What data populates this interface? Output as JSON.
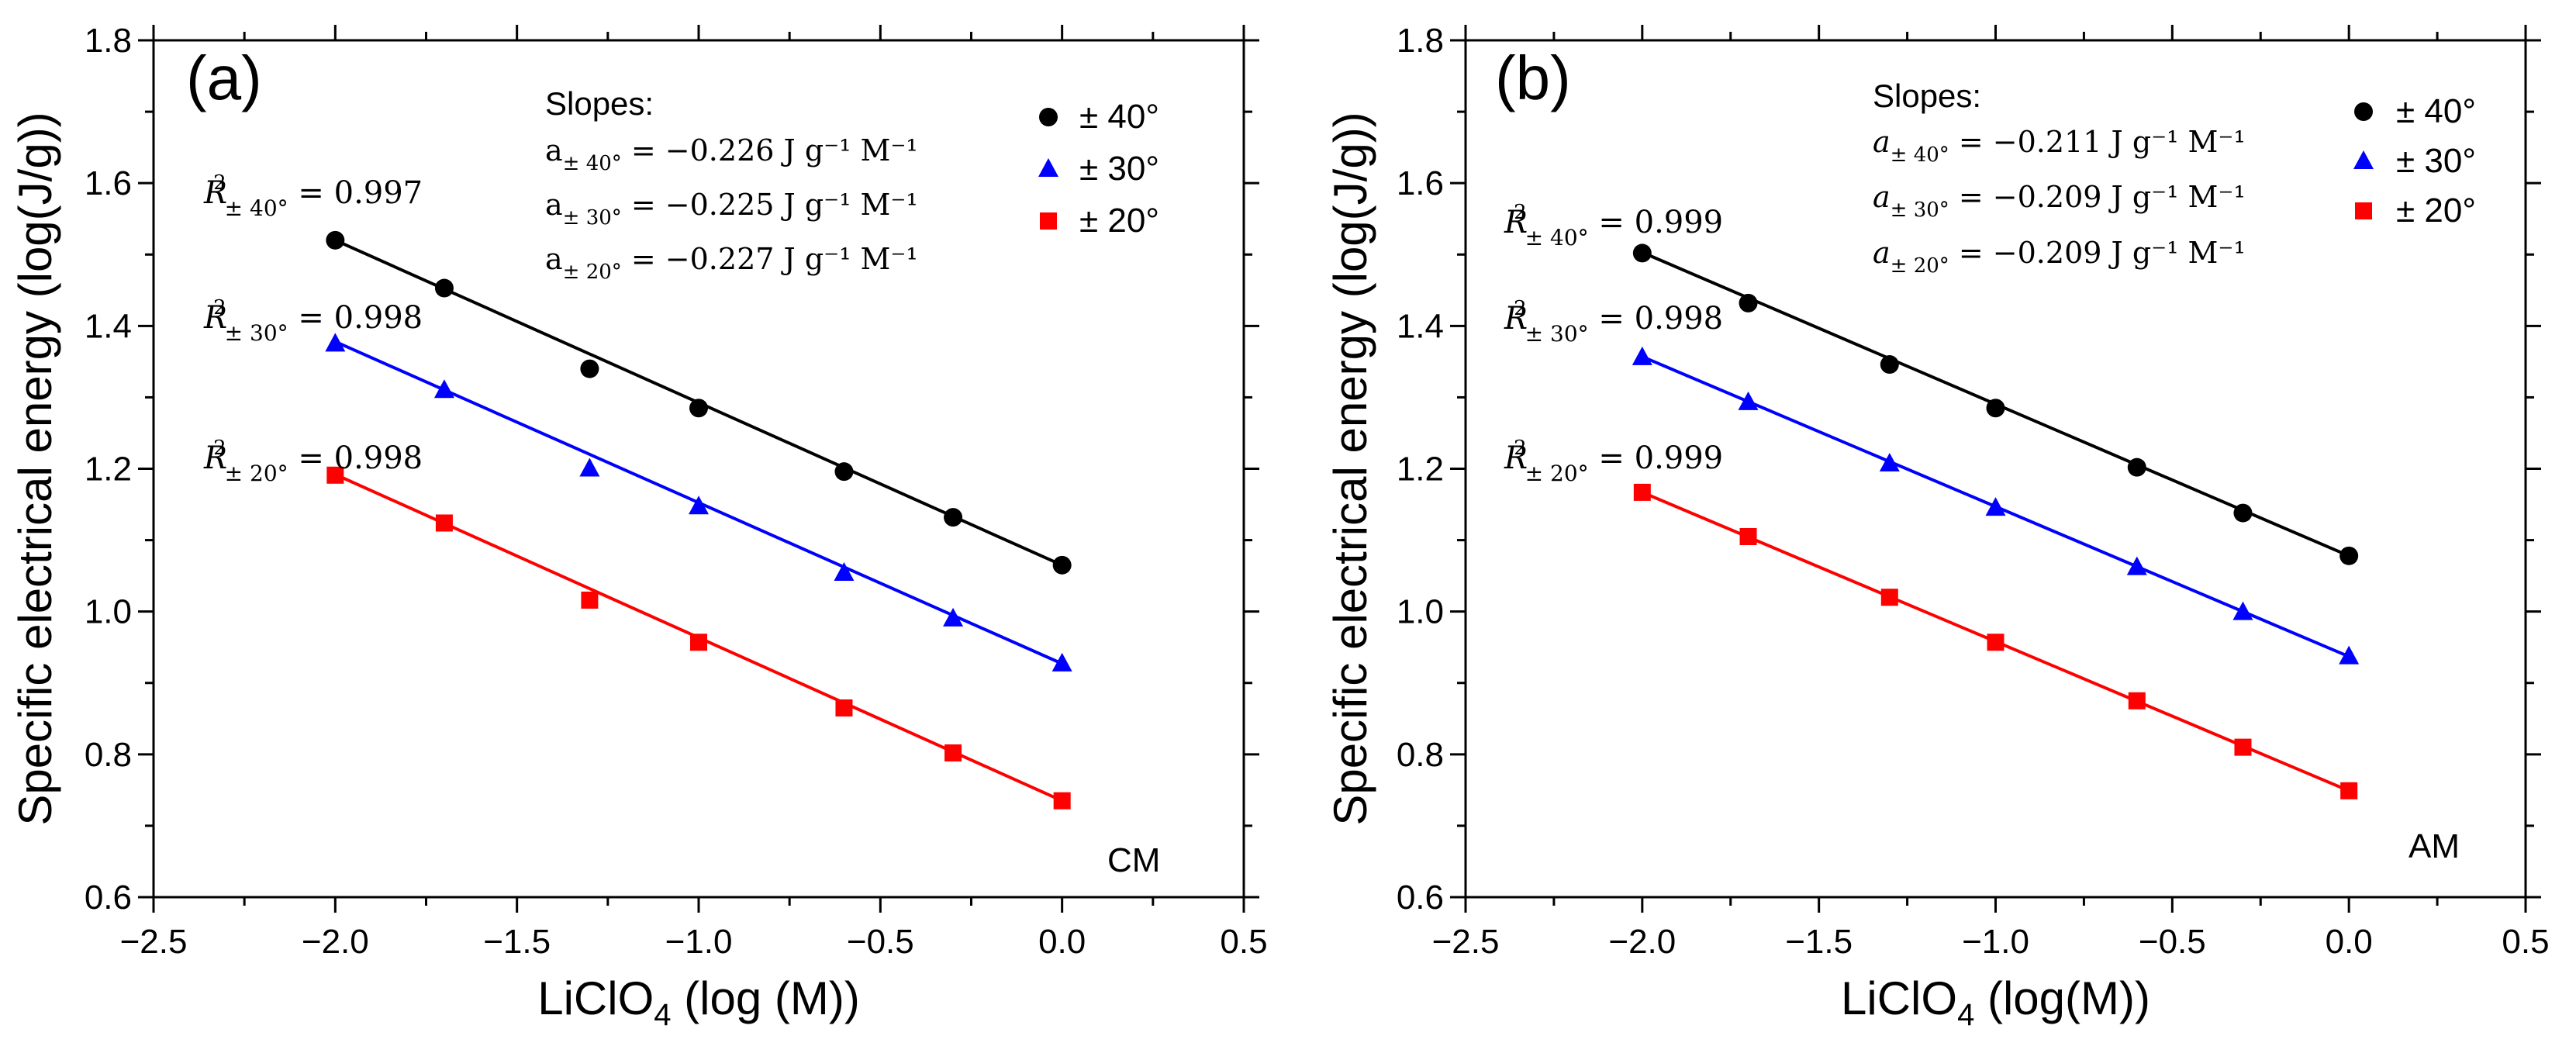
{
  "chart_data": [
    {
      "type": "scatter",
      "panel_label": "(a)",
      "title": "",
      "xlabel_main": "LiClO",
      "xlabel_sub": "4",
      "xlabel_rest": " (log (M))",
      "ylabel": "Specific electrical energy (log(J/g))",
      "xlim": [
        -2.5,
        0.5
      ],
      "ylim": [
        0.6,
        1.8
      ],
      "xticks": [
        -2.5,
        -2.0,
        -1.5,
        -1.0,
        -0.5,
        0.0,
        0.5
      ],
      "xtick_labels": [
        "−2.5",
        "−2.0",
        "−1.5",
        "−1.0",
        "−0.5",
        "0.0",
        "0.5"
      ],
      "yticks": [
        0.6,
        0.8,
        1.0,
        1.2,
        1.4,
        1.6,
        1.8
      ],
      "ytick_labels": [
        "0.6",
        "0.8",
        "1.0",
        "1.2",
        "1.4",
        "1.6",
        "1.8"
      ],
      "x": [
        -2.0,
        -1.7,
        -1.3,
        -1.0,
        -0.6,
        -0.3,
        0.0
      ],
      "corner_label": "CM",
      "slopes_title": "Slopes:",
      "series": [
        {
          "name": "± 40°",
          "legend": "± 40°",
          "color": "#000000",
          "marker": "circle",
          "values": [
            1.52,
            1.453,
            1.34,
            1.285,
            1.196,
            1.132,
            1.065
          ],
          "fit_start": 1.52,
          "fit_end": 1.065,
          "r2_label": "= 0.997",
          "r2_sub": "± 40°",
          "slope_letter": "a",
          "slope_sub": "± 40°",
          "slope_text": "= −0.226 J g⁻¹ M⁻¹"
        },
        {
          "name": "± 30°",
          "legend": "± 30°",
          "color": "#0000ff",
          "marker": "triangle",
          "values": [
            1.375,
            1.31,
            1.2,
            1.147,
            1.054,
            0.99,
            0.927
          ],
          "fit_start": 1.378,
          "fit_end": 0.927,
          "r2_label": "= 0.998",
          "r2_sub": "± 30°",
          "slope_letter": "a",
          "slope_sub": "± 30°",
          "slope_text": "= −0.225 J g⁻¹ M⁻¹"
        },
        {
          "name": "± 20°",
          "legend": "± 20°",
          "color": "#ff0000",
          "marker": "square",
          "values": [
            1.191,
            1.124,
            1.016,
            0.957,
            0.865,
            0.802,
            0.735
          ],
          "fit_start": 1.192,
          "fit_end": 0.735,
          "r2_label": "= 0.998",
          "r2_sub": "± 20°",
          "slope_letter": "a",
          "slope_sub": "± 20°",
          "slope_text": "= −0.227 J g⁻¹ M⁻¹"
        }
      ]
    },
    {
      "type": "scatter",
      "panel_label": "(b)",
      "title": "",
      "xlabel_main": "LiClO",
      "xlabel_sub": "4",
      "xlabel_rest": " (log(M))",
      "ylabel": "Specific electrical energy (log(J/g))",
      "xlim": [
        -2.5,
        0.5
      ],
      "ylim": [
        0.6,
        1.8
      ],
      "xticks": [
        -2.5,
        -2.0,
        -1.5,
        -1.0,
        -0.5,
        0.0,
        0.5
      ],
      "xtick_labels": [
        "−2.5",
        "−2.0",
        "−1.5",
        "−1.0",
        "−0.5",
        "0.0",
        "0.5"
      ],
      "yticks": [
        0.6,
        0.8,
        1.0,
        1.2,
        1.4,
        1.6,
        1.8
      ],
      "ytick_labels": [
        "0.6",
        "0.8",
        "1.0",
        "1.2",
        "1.4",
        "1.6",
        "1.8"
      ],
      "x": [
        -2.0,
        -1.7,
        -1.3,
        -1.0,
        -0.6,
        -0.3,
        0.0
      ],
      "corner_label": "AM",
      "slopes_title": "Slopes:",
      "series": [
        {
          "name": "± 40°",
          "legend": "± 40°",
          "color": "#000000",
          "marker": "circle",
          "values": [
            1.502,
            1.432,
            1.346,
            1.285,
            1.202,
            1.138,
            1.078
          ],
          "fit_start": 1.503,
          "fit_end": 1.078,
          "r2_label": "= 0.999",
          "r2_sub": "± 40°",
          "slope_letter": "a",
          "slope_sub": "± 40°",
          "slope_text": "= −0.211 J g⁻¹ M⁻¹"
        },
        {
          "name": "± 30°",
          "legend": "± 30°",
          "color": "#0000ff",
          "marker": "triangle",
          "values": [
            1.356,
            1.293,
            1.207,
            1.145,
            1.062,
            0.999,
            0.937
          ],
          "fit_start": 1.357,
          "fit_end": 0.937,
          "r2_label": "= 0.998",
          "r2_sub": "± 30°",
          "slope_letter": "a",
          "slope_sub": "± 30°",
          "slope_text": "= −0.209 J g⁻¹ M⁻¹"
        },
        {
          "name": "± 20°",
          "legend": "± 20°",
          "color": "#ff0000",
          "marker": "square",
          "values": [
            1.167,
            1.105,
            1.02,
            0.957,
            0.875,
            0.81,
            0.749
          ],
          "fit_start": 1.167,
          "fit_end": 0.749,
          "r2_label": "= 0.999",
          "r2_sub": "± 20°",
          "slope_letter": "a",
          "slope_sub": "± 20°",
          "slope_text": "= −0.209 J g⁻¹ M⁻¹"
        }
      ]
    }
  ]
}
